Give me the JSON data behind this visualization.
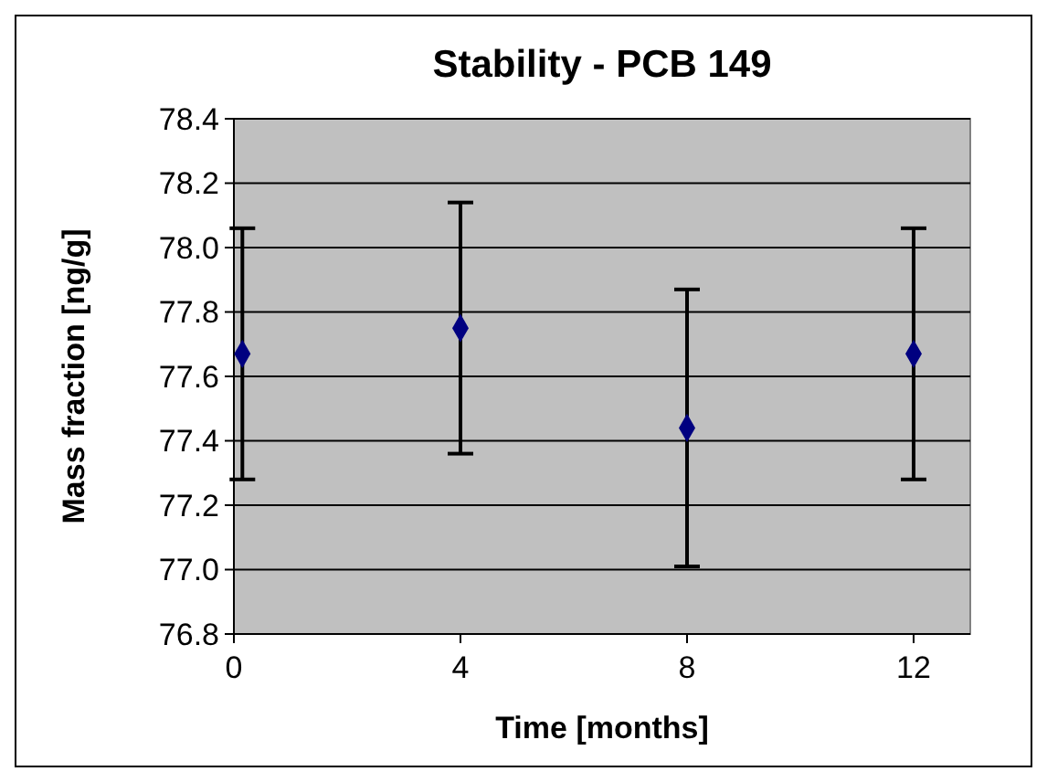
{
  "chart_data": {
    "type": "scatter",
    "title": "Stability - PCB 149",
    "xlabel": "Time [months]",
    "ylabel": "Mass fraction [ng/g]",
    "x": [
      0.15,
      4,
      8,
      12
    ],
    "series": [
      {
        "color": "#000080",
        "values": [
          77.67,
          77.75,
          77.44,
          77.67
        ],
        "errors": [
          0.39,
          0.39,
          0.43,
          0.39
        ]
      }
    ],
    "xlim": [
      0,
      13
    ],
    "xticks": [
      0,
      4,
      8,
      12
    ],
    "ylim": [
      76.8,
      78.4
    ],
    "yticks": [
      {
        "value": 76.8,
        "label": "76.8"
      },
      {
        "value": 77.0,
        "label": "77.0"
      },
      {
        "value": 77.2,
        "label": "77.2"
      },
      {
        "value": 77.4,
        "label": "77.4"
      },
      {
        "value": 77.6,
        "label": "77.6"
      },
      {
        "value": 77.8,
        "label": "77.8"
      },
      {
        "value": 78.0,
        "label": "78.0"
      },
      {
        "value": 78.2,
        "label": "78.2"
      },
      {
        "value": 78.4,
        "label": "78.4"
      }
    ],
    "grid": "y",
    "marker": "diamond"
  }
}
